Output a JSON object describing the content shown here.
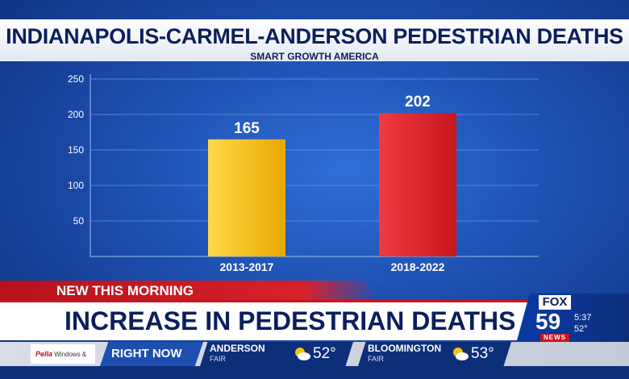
{
  "chart_data": {
    "type": "bar",
    "title": "INDIANAPOLIS-CARMEL-ANDERSON PEDESTRIAN DEATHS",
    "subtitle": "SMART GROWTH AMERICA",
    "categories": [
      "2013-2017",
      "2018-2022"
    ],
    "values": [
      165,
      202
    ],
    "value_labels": [
      "165",
      "202"
    ],
    "y_ticks": [
      "50",
      "100",
      "150",
      "200",
      "250"
    ],
    "ylim": [
      0,
      250
    ],
    "grid": true,
    "colors": [
      "#f5c313",
      "#e02a30"
    ]
  },
  "lower_third": {
    "tag": "NEW THIS MORNING",
    "headline": "INCREASE IN PEDESTRIAN DEATHS"
  },
  "logo": {
    "network": "FOX",
    "channel": "59",
    "label": "NEWS",
    "time": "5:37",
    "temp": "52°"
  },
  "ticker": {
    "sponsor_brand": "Pella",
    "sponsor_text": "Windows & Doors",
    "label": "RIGHT NOW",
    "weather": [
      {
        "city": "ANDERSON",
        "condition": "FAIR",
        "temp": "52°",
        "icon": "partly-cloudy-icon"
      },
      {
        "city": "BLOOMINGTON",
        "condition": "FAIR",
        "temp": "53°",
        "icon": "partly-cloudy-icon"
      }
    ]
  }
}
